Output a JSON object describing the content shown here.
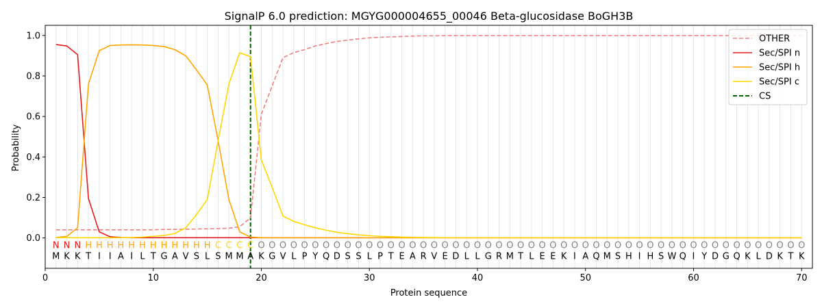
{
  "chart_data": {
    "type": "line",
    "title": "SignalP 6.0 prediction: MGYG000004655_00046 Beta-glucosidase BoGH3B",
    "xlabel": "Protein sequence",
    "ylabel": "Probability",
    "xlim": [
      0,
      71
    ],
    "ylim": [
      -0.15,
      1.05
    ],
    "x_ticks": [
      0,
      10,
      20,
      30,
      40,
      50,
      60,
      70
    ],
    "y_ticks": [
      0.0,
      0.2,
      0.4,
      0.6,
      0.8,
      1.0
    ],
    "x_tick_labels": [
      "0",
      "10",
      "20",
      "30",
      "40",
      "50",
      "60",
      "70"
    ],
    "y_tick_labels": [
      "0.0",
      "0.2",
      "0.4",
      "0.6",
      "0.8",
      "1.0"
    ],
    "legend_position": "top-right",
    "grid": "vertical lines at each residue",
    "sequence": [
      "M",
      "K",
      "K",
      "T",
      "I",
      "I",
      "A",
      "I",
      "L",
      "T",
      "G",
      "A",
      "V",
      "S",
      "L",
      "S",
      "M",
      "M",
      "A",
      "K",
      "G",
      "V",
      "L",
      "P",
      "Y",
      "Q",
      "D",
      "S",
      "S",
      "L",
      "P",
      "T",
      "E",
      "A",
      "R",
      "V",
      "E",
      "D",
      "L",
      "L",
      "G",
      "R",
      "M",
      "T",
      "L",
      "E",
      "E",
      "K",
      "I",
      "A",
      "Q",
      "M",
      "S",
      "H",
      "I",
      "H",
      "S",
      "W",
      "Q",
      "I",
      "Y",
      "D",
      "G",
      "Q",
      "K",
      "L",
      "D",
      "K",
      "T",
      "K"
    ],
    "labels": [
      "N",
      "N",
      "N",
      "H",
      "H",
      "H",
      "H",
      "H",
      "H",
      "H",
      "H",
      "H",
      "H",
      "H",
      "H",
      "C",
      "C",
      "C",
      "C",
      "O",
      "O",
      "O",
      "O",
      "O",
      "O",
      "O",
      "O",
      "O",
      "O",
      "O",
      "O",
      "O",
      "O",
      "O",
      "O",
      "O",
      "O",
      "O",
      "O",
      "O",
      "O",
      "O",
      "O",
      "O",
      "O",
      "O",
      "O",
      "O",
      "O",
      "O",
      "O",
      "O",
      "O",
      "O",
      "O",
      "O",
      "O",
      "O",
      "O",
      "O",
      "O",
      "O",
      "O",
      "O",
      "O",
      "O",
      "O",
      "O",
      "O",
      "O"
    ],
    "label_colors": {
      "N": "#e41a1c",
      "H": "#ffa500",
      "C": "#ffd700",
      "O": "#808080"
    },
    "cleavage_site": 19,
    "series": [
      {
        "name": "OTHER",
        "color": "#f08080",
        "dash": "dashed",
        "values": [
          0.04,
          0.04,
          0.04,
          0.04,
          0.04,
          0.04,
          0.04,
          0.04,
          0.04,
          0.04,
          0.042,
          0.042,
          0.043,
          0.044,
          0.045,
          0.046,
          0.048,
          0.055,
          0.1,
          0.61,
          0.75,
          0.89,
          0.915,
          0.93,
          0.948,
          0.96,
          0.97,
          0.977,
          0.983,
          0.988,
          0.991,
          0.993,
          0.995,
          0.997,
          0.998,
          0.998,
          0.999,
          0.999,
          0.999,
          0.999,
          0.999,
          0.999,
          0.999,
          0.999,
          0.999,
          0.999,
          0.999,
          0.999,
          0.999,
          0.999,
          0.999,
          0.999,
          0.999,
          0.999,
          0.999,
          0.999,
          0.999,
          0.999,
          0.999,
          0.999,
          0.999,
          0.999,
          0.999,
          0.999,
          0.999,
          0.999,
          0.999,
          0.999,
          0.999,
          0.999
        ]
      },
      {
        "name": "Sec/SPI n",
        "color": "#e41a1c",
        "dash": "solid",
        "values": [
          0.955,
          0.948,
          0.905,
          0.195,
          0.03,
          0.006,
          0.002,
          0.001,
          0.001,
          0.001,
          0.001,
          0.001,
          0.001,
          0.001,
          0.001,
          0.001,
          0.001,
          0.001,
          0.001,
          0.001,
          0.001,
          0.001,
          0.001,
          0.001,
          0.001,
          0.001,
          0.001,
          0.001,
          0.001,
          0.001,
          0.001,
          0.001,
          0.001,
          0.001,
          0.001,
          0.001,
          0.001,
          0.001,
          0.001,
          0.001,
          0.001,
          0.001,
          0.001,
          0.001,
          0.001,
          0.001,
          0.001,
          0.001,
          0.001,
          0.001,
          0.001,
          0.001,
          0.001,
          0.001,
          0.001,
          0.001,
          0.001,
          0.001,
          0.001,
          0.001,
          0.001,
          0.001,
          0.001,
          0.001,
          0.001,
          0.001,
          0.001,
          0.001,
          0.001,
          0.001
        ]
      },
      {
        "name": "Sec/SPI h",
        "color": "#ffa500",
        "dash": "solid",
        "values": [
          0.002,
          0.008,
          0.05,
          0.76,
          0.925,
          0.95,
          0.953,
          0.954,
          0.953,
          0.95,
          0.945,
          0.93,
          0.9,
          0.83,
          0.755,
          0.48,
          0.19,
          0.03,
          0.004,
          0.001,
          0.001,
          0.001,
          0.001,
          0.001,
          0.001,
          0.001,
          0.001,
          0.001,
          0.001,
          0.001,
          0.001,
          0.001,
          0.001,
          0.001,
          0.001,
          0.001,
          0.001,
          0.001,
          0.001,
          0.001,
          0.001,
          0.001,
          0.001,
          0.001,
          0.001,
          0.001,
          0.001,
          0.001,
          0.001,
          0.001,
          0.001,
          0.001,
          0.001,
          0.001,
          0.001,
          0.001,
          0.001,
          0.001,
          0.001,
          0.001,
          0.001,
          0.001,
          0.001,
          0.001,
          0.001,
          0.001,
          0.001,
          0.001,
          0.001,
          0.001
        ]
      },
      {
        "name": "Sec/SPI c",
        "color": "#ffd700",
        "dash": "solid",
        "values": [
          0.001,
          0.001,
          0.001,
          0.001,
          0.001,
          0.001,
          0.001,
          0.002,
          0.004,
          0.008,
          0.012,
          0.022,
          0.05,
          0.115,
          0.19,
          0.48,
          0.76,
          0.915,
          0.895,
          0.385,
          0.25,
          0.108,
          0.082,
          0.065,
          0.05,
          0.038,
          0.028,
          0.021,
          0.015,
          0.011,
          0.008,
          0.006,
          0.004,
          0.003,
          0.002,
          0.002,
          0.001,
          0.001,
          0.001,
          0.001,
          0.001,
          0.001,
          0.001,
          0.001,
          0.001,
          0.001,
          0.001,
          0.001,
          0.001,
          0.001,
          0.001,
          0.001,
          0.001,
          0.001,
          0.001,
          0.001,
          0.001,
          0.001,
          0.001,
          0.001,
          0.001,
          0.001,
          0.001,
          0.001,
          0.001,
          0.001,
          0.001,
          0.001,
          0.001,
          0.001
        ]
      }
    ],
    "cs_legend": {
      "name": "CS",
      "color": "#006400",
      "dash": "dashed"
    }
  }
}
